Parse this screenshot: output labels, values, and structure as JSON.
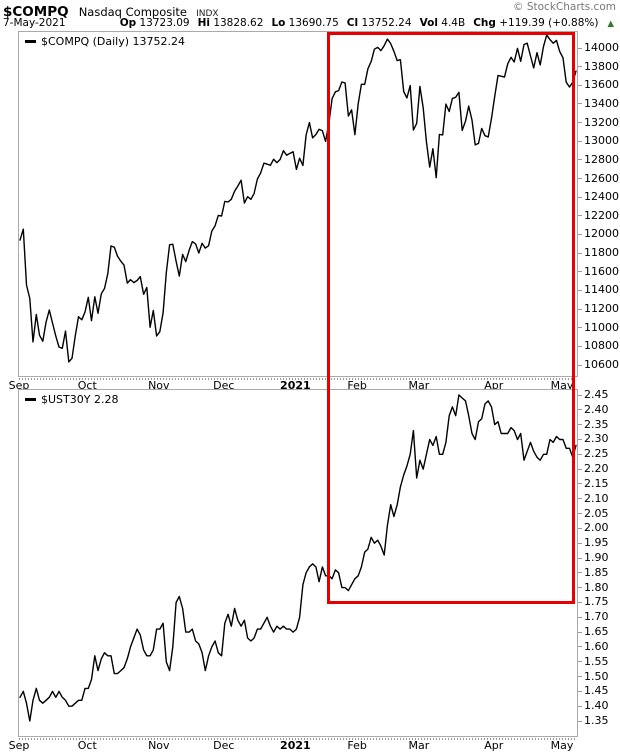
{
  "header": {
    "symbol": "$COMPQ",
    "name": "Nasdaq Composite",
    "exchange": "INDX",
    "copyright": "© StockCharts.com",
    "date": "7-May-2021",
    "quote": [
      {
        "label": "Op",
        "value": "13723.09"
      },
      {
        "label": "Hi",
        "value": "13828.62"
      },
      {
        "label": "Lo",
        "value": "13690.75"
      },
      {
        "label": "Cl",
        "value": "13752.24"
      },
      {
        "label": "Vol",
        "value": "4.4B"
      },
      {
        "label": "Chg",
        "value": "+119.39 (+0.88%)"
      }
    ],
    "change_direction": "up",
    "up_arrow": "▲",
    "up_color": "#2e7a33"
  },
  "colors": {
    "line": "#000000",
    "frame": "#aaaaaa",
    "highlight": "#e80000",
    "copyright_gray": "#777777"
  },
  "highlight_box": {
    "color": "#e80000",
    "spans": "late-January 2021 through May 2021 on both panels"
  },
  "chart_data": [
    {
      "type": "line",
      "symbol": "$COMPQ",
      "legend": "$COMPQ (Daily) 13752.24",
      "line_color": "#000000",
      "x_tick_labels": [
        "Sep",
        "Oct",
        "Nov",
        "Dec",
        "2021",
        "Feb",
        "Mar",
        "Apr",
        "May"
      ],
      "x_tick_day_index": [
        0,
        21,
        43,
        63,
        85,
        104,
        123,
        146,
        167
      ],
      "bold_x_label": "2021",
      "ylim": [
        10600,
        14000
      ],
      "y_ticks": [
        "14000",
        "13800",
        "13600",
        "13400",
        "13200",
        "13000",
        "12800",
        "12600",
        "12400",
        "12200",
        "12000",
        "11800",
        "11600",
        "11400",
        "11200",
        "11000",
        "10800",
        "10600"
      ],
      "values": [
        11940,
        12056,
        11458,
        11313,
        10848,
        11142,
        10920,
        10854,
        11057,
        11190,
        11050,
        10910,
        10793,
        10779,
        10964,
        10633,
        10672,
        10914,
        11118,
        11085,
        11168,
        11326,
        11075,
        11332,
        11154,
        11364,
        11420,
        11579,
        11876,
        11863,
        11768,
        11713,
        11671,
        11478,
        11516,
        11484,
        11506,
        11548,
        11358,
        11431,
        11004,
        11185,
        10911,
        10957,
        11160,
        11590,
        11890,
        11895,
        11713,
        11553,
        11786,
        11709,
        11829,
        11924,
        11899,
        11801,
        11905,
        11854,
        11880,
        12036,
        12094,
        12205,
        12198,
        12355,
        12349,
        12377,
        12464,
        12519,
        12582,
        12338,
        12405,
        12377,
        12440,
        12595,
        12658,
        12764,
        12755,
        12742,
        12807,
        12771,
        12804,
        12899,
        12850,
        12870,
        12888,
        12698,
        12818,
        12740,
        13067,
        13201,
        13036,
        13072,
        13128,
        13112,
        12998,
        13197,
        13457,
        13530,
        13543,
        13635,
        13626,
        13270,
        13337,
        13070,
        13403,
        13612,
        13610,
        13777,
        13856,
        13987,
        14007,
        13972,
        14025,
        14095,
        14047,
        13965,
        13865,
        13874,
        13533,
        13465,
        13597,
        13119,
        13192,
        13588,
        13358,
        12997,
        12723,
        12920,
        12609,
        13073,
        13068,
        13398,
        13319,
        13459,
        13471,
        13525,
        13116,
        13215,
        13377,
        13227,
        12961,
        12977,
        13138,
        13059,
        13045,
        13246,
        13480,
        13705,
        13698,
        13688,
        13829,
        13900,
        13850,
        13996,
        13857,
        14038,
        14052,
        13914,
        13786,
        13950,
        13818,
        14016,
        14138,
        14090,
        14051,
        14082,
        13962,
        13895,
        13633,
        13582,
        13632,
        13752
      ]
    },
    {
      "type": "line",
      "symbol": "$UST30Y",
      "legend": "$UST30Y 2.28",
      "line_color": "#000000",
      "x_tick_labels": [
        "Sep",
        "Oct",
        "Nov",
        "Dec",
        "2021",
        "Feb",
        "Mar",
        "Apr",
        "May"
      ],
      "x_tick_day_index": [
        0,
        21,
        43,
        63,
        85,
        104,
        123,
        146,
        167
      ],
      "bold_x_label": "2021",
      "ylim": [
        1.35,
        2.45
      ],
      "y_ticks": [
        "2.45",
        "2.40",
        "2.35",
        "2.30",
        "2.25",
        "2.20",
        "2.15",
        "2.10",
        "2.05",
        "2.00",
        "1.95",
        "1.90",
        "1.85",
        "1.80",
        "1.75",
        "1.70",
        "1.65",
        "1.60",
        "1.55",
        "1.50",
        "1.45",
        "1.40",
        "1.35"
      ],
      "values": [
        1.43,
        1.45,
        1.41,
        1.35,
        1.42,
        1.46,
        1.42,
        1.41,
        1.42,
        1.43,
        1.45,
        1.43,
        1.45,
        1.43,
        1.42,
        1.4,
        1.4,
        1.41,
        1.42,
        1.42,
        1.46,
        1.46,
        1.49,
        1.57,
        1.52,
        1.56,
        1.58,
        1.57,
        1.57,
        1.51,
        1.51,
        1.52,
        1.53,
        1.56,
        1.6,
        1.63,
        1.66,
        1.64,
        1.59,
        1.57,
        1.57,
        1.59,
        1.66,
        1.66,
        1.68,
        1.55,
        1.52,
        1.6,
        1.75,
        1.77,
        1.73,
        1.65,
        1.65,
        1.66,
        1.62,
        1.61,
        1.58,
        1.52,
        1.57,
        1.6,
        1.62,
        1.58,
        1.57,
        1.68,
        1.71,
        1.67,
        1.73,
        1.69,
        1.67,
        1.69,
        1.63,
        1.62,
        1.63,
        1.66,
        1.66,
        1.68,
        1.7,
        1.67,
        1.65,
        1.67,
        1.66,
        1.67,
        1.66,
        1.66,
        1.65,
        1.66,
        1.7,
        1.81,
        1.85,
        1.87,
        1.88,
        1.87,
        1.82,
        1.87,
        1.84,
        1.84,
        1.83,
        1.86,
        1.85,
        1.8,
        1.8,
        1.79,
        1.81,
        1.83,
        1.84,
        1.87,
        1.92,
        1.93,
        1.97,
        1.95,
        1.96,
        1.94,
        1.91,
        2.01,
        2.08,
        2.04,
        2.08,
        2.14,
        2.18,
        2.21,
        2.25,
        2.33,
        2.17,
        2.23,
        2.2,
        2.25,
        2.3,
        2.28,
        2.31,
        2.25,
        2.25,
        2.29,
        2.38,
        2.41,
        2.38,
        2.45,
        2.44,
        2.43,
        2.38,
        2.32,
        2.3,
        2.36,
        2.37,
        2.42,
        2.43,
        2.41,
        2.35,
        2.36,
        2.32,
        2.32,
        2.32,
        2.34,
        2.33,
        2.3,
        2.32,
        2.23,
        2.26,
        2.29,
        2.26,
        2.24,
        2.23,
        2.25,
        2.25,
        2.3,
        2.29,
        2.31,
        2.3,
        2.3,
        2.27,
        2.27,
        2.24,
        2.28
      ]
    }
  ]
}
